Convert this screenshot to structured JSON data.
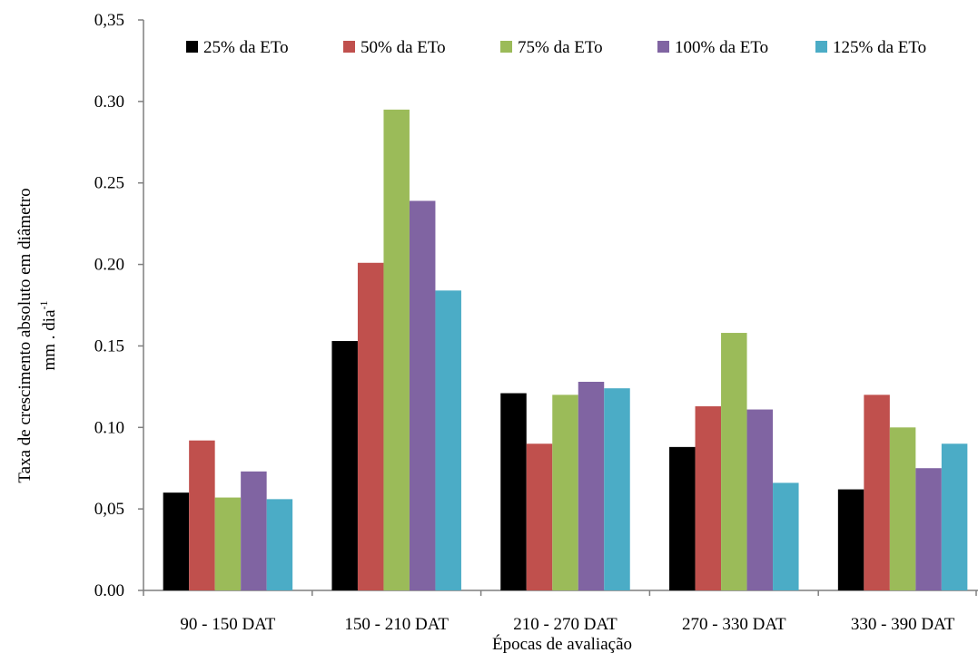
{
  "chart_data": {
    "type": "bar",
    "title": "",
    "xlabel": "Épocas de avaliação",
    "ylabel_line1": "Taxa de crescimento absoluto em diâmetro",
    "ylabel_line2": "mm . dia",
    "ylabel_superscript": "-1",
    "ylim": [
      0,
      0.35
    ],
    "ytick_values": [
      0,
      0.05,
      0.1,
      0.15,
      0.2,
      0.25,
      0.3,
      0.35
    ],
    "ytick_labels": [
      "0.00",
      "0,05",
      "0.10",
      "0.15",
      "0.20",
      "0.25",
      "0.30",
      "0,35"
    ],
    "categories": [
      "90 - 150 DAT",
      "150 - 210 DAT",
      "210 - 270 DAT",
      "270 - 330 DAT",
      "330 - 390 DAT"
    ],
    "grid": false,
    "legend_position": "top",
    "series": [
      {
        "name": "25% da ETo",
        "color": "#000000",
        "values": [
          0.06,
          0.153,
          0.121,
          0.088,
          0.062
        ]
      },
      {
        "name": "50% da ETo",
        "color": "#c0504d",
        "values": [
          0.092,
          0.201,
          0.09,
          0.113,
          0.12
        ]
      },
      {
        "name": "75% da ETo",
        "color": "#9bbb59",
        "values": [
          0.057,
          0.295,
          0.12,
          0.158,
          0.1
        ]
      },
      {
        "name": "100% da ETo",
        "color": "#8064a2",
        "values": [
          0.073,
          0.239,
          0.128,
          0.111,
          0.075
        ]
      },
      {
        "name": "125% da ETo",
        "color": "#4bacc6",
        "values": [
          0.056,
          0.184,
          0.124,
          0.066,
          0.09
        ]
      }
    ]
  }
}
